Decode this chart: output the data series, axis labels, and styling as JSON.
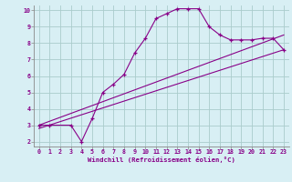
{
  "xlabel": "Windchill (Refroidissement éolien,°C)",
  "background_color": "#d8eff4",
  "grid_color": "#aacccc",
  "line_color": "#880088",
  "xlim": [
    -0.5,
    23.5
  ],
  "ylim": [
    1.7,
    10.3
  ],
  "xticks": [
    0,
    1,
    2,
    3,
    4,
    5,
    6,
    7,
    8,
    9,
    10,
    11,
    12,
    13,
    14,
    15,
    16,
    17,
    18,
    19,
    20,
    21,
    22,
    23
  ],
  "yticks": [
    2,
    3,
    4,
    5,
    6,
    7,
    8,
    9,
    10
  ],
  "curve1_x": [
    0,
    1,
    3,
    4,
    5,
    6,
    7,
    8,
    9,
    10,
    11,
    12,
    13,
    14,
    15,
    16,
    17,
    18,
    19,
    20,
    21,
    22,
    23
  ],
  "curve1_y": [
    3,
    3,
    3,
    2,
    3.4,
    5,
    5.5,
    6.1,
    7.4,
    8.3,
    9.5,
    9.8,
    10.1,
    10.1,
    10.1,
    9.0,
    8.5,
    8.2,
    8.2,
    8.2,
    8.3,
    8.3,
    7.6
  ],
  "line2_x": [
    0,
    23
  ],
  "line2_y": [
    3.0,
    8.5
  ],
  "line3_x": [
    0,
    23
  ],
  "line3_y": [
    2.8,
    7.6
  ],
  "marker": "+"
}
